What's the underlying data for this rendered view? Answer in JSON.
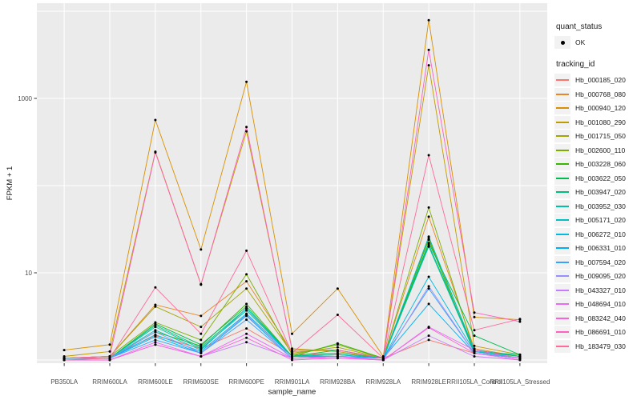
{
  "figure": {
    "background": "#FFFFFF",
    "panel_background": "#EBEBEB",
    "gridline_color": "#FFFFFF",
    "axis_tick_color": "#333333",
    "axis_text_color": "#4D4D4D",
    "title_text_color": "#1A1A1A",
    "point_color": "#000000",
    "legend_key_background": "#F2F2F2"
  },
  "legend": {
    "quant_status_title": "quant_status",
    "quant_status_items": [
      {
        "label": "OK",
        "symbol": "point"
      }
    ],
    "tracking_title": "tracking_id"
  },
  "chart_data": {
    "type": "line",
    "xlabel": "sample_name",
    "ylabel": "FPKM + 1",
    "y_scale": "log10",
    "grid": true,
    "legend_position": "right",
    "ylim": [
      0.95,
      11500
    ],
    "y_axis_ticks": [
      {
        "value": 1000,
        "label": "1000"
      },
      {
        "value": 10,
        "label": "10"
      }
    ],
    "y_gridlines": [
      1,
      10,
      100,
      1000,
      10000
    ],
    "categories": [
      "PB350LA",
      "RRIM600LA",
      "RRIM600LE",
      "RRIM600SE",
      "RRIM600PE",
      "RRIM901LA",
      "RRIM928BA",
      "RRIM928LA",
      "RRIM928LE",
      "RRII105LA_Control",
      "RRII105LA_Stressed"
    ],
    "series": [
      {
        "name": "Hb_000185_020",
        "color": "#F8766D",
        "values": [
          1.05,
          1.1,
          1.9,
          1.35,
          2.3,
          1.15,
          1.2,
          1.05,
          1.7,
          1.2,
          1.05
        ]
      },
      {
        "name": "Hb_000768_080",
        "color": "#E88526",
        "values": [
          1.05,
          1.1,
          4.3,
          3.2,
          8.0,
          1.25,
          1.3,
          1.05,
          44,
          1.35,
          1.1
        ]
      },
      {
        "name": "Hb_000940_120",
        "color": "#D89000",
        "values": [
          1.3,
          1.5,
          565,
          18.5,
          1550,
          2.0,
          6.6,
          1.1,
          7900,
          3.1,
          2.9
        ]
      },
      {
        "name": "Hb_001080_290",
        "color": "#C09B00",
        "values": [
          1.1,
          1.25,
          245,
          7.4,
          420,
          1.35,
          1.25,
          1.05,
          2400,
          1.45,
          1.15
        ]
      },
      {
        "name": "Hb_001715_050",
        "color": "#A3A500",
        "values": [
          1.05,
          1.1,
          4.1,
          2.4,
          6.6,
          1.2,
          1.4,
          1.05,
          25,
          1.3,
          1.1
        ]
      },
      {
        "name": "Hb_002600_110",
        "color": "#7CAE00",
        "values": [
          1.05,
          1.1,
          2.7,
          1.7,
          9.6,
          1.15,
          1.5,
          1.05,
          56,
          1.25,
          1.1
        ]
      },
      {
        "name": "Hb_003228_060",
        "color": "#39B600",
        "values": [
          1.05,
          1.05,
          2.1,
          1.45,
          4.4,
          1.1,
          1.55,
          1.05,
          24,
          1.2,
          1.05
        ]
      },
      {
        "name": "Hb_003622_050",
        "color": "#00BB4E",
        "values": [
          1.05,
          1.05,
          2.6,
          1.5,
          4.1,
          1.1,
          1.3,
          1.05,
          22,
          1.9,
          1.15
        ]
      },
      {
        "name": "Hb_003947_020",
        "color": "#00BF7D",
        "values": [
          1.05,
          1.05,
          2.5,
          1.4,
          3.9,
          1.1,
          1.2,
          1.05,
          21,
          1.3,
          1.1
        ]
      },
      {
        "name": "Hb_003952_030",
        "color": "#00C1A3",
        "values": [
          1.05,
          1.05,
          2.4,
          1.35,
          3.7,
          1.1,
          1.15,
          1.05,
          20,
          1.25,
          1.15
        ]
      },
      {
        "name": "Hb_005171_020",
        "color": "#00BFC4",
        "values": [
          1.05,
          1.05,
          2.2,
          1.3,
          3.9,
          1.1,
          1.15,
          1.05,
          26,
          1.3,
          1.05
        ]
      },
      {
        "name": "Hb_006272_010",
        "color": "#00BAE0",
        "values": [
          1.05,
          1.05,
          1.95,
          1.25,
          3.4,
          1.1,
          1.1,
          1.05,
          9.0,
          1.25,
          1.05
        ]
      },
      {
        "name": "Hb_006331_010",
        "color": "#00B0F6",
        "values": [
          1.05,
          1.05,
          1.85,
          1.2,
          3.2,
          1.05,
          1.1,
          1.05,
          4.4,
          1.2,
          1.05
        ]
      },
      {
        "name": "Hb_007594_020",
        "color": "#35A2FF",
        "values": [
          1.05,
          1.05,
          1.7,
          1.2,
          2.9,
          1.05,
          1.1,
          1.05,
          6.6,
          1.2,
          1.05
        ]
      },
      {
        "name": "Hb_009095_020",
        "color": "#9590FF",
        "values": [
          1.05,
          1.05,
          2.1,
          1.2,
          3.3,
          1.05,
          1.1,
          1.0,
          7.0,
          1.2,
          1.05
        ]
      },
      {
        "name": "Hb_043327_010",
        "color": "#C77CFF",
        "values": [
          1.0,
          1.0,
          1.5,
          1.1,
          1.6,
          1.05,
          1.05,
          1.0,
          1.9,
          1.1,
          1.0
        ]
      },
      {
        "name": "Hb_048694_010",
        "color": "#E76BF3",
        "values": [
          1.0,
          1.0,
          1.6,
          1.1,
          2.0,
          1.05,
          1.1,
          1.0,
          2.4,
          1.3,
          1.05
        ]
      },
      {
        "name": "Hb_083242_040",
        "color": "#FA62DB",
        "values": [
          1.0,
          1.0,
          1.5,
          1.1,
          1.8,
          1.0,
          1.05,
          1.0,
          2.35,
          1.2,
          1.0
        ]
      },
      {
        "name": "Hb_086691_010",
        "color": "#FF62BC",
        "values": [
          1.05,
          1.1,
          240,
          7.3,
          470,
          1.3,
          1.3,
          1.05,
          3600,
          3.5,
          2.75
        ]
      },
      {
        "name": "Hb_183479_030",
        "color": "#FF6A98",
        "values": [
          1.0,
          1.05,
          6.8,
          2.0,
          17.9,
          1.2,
          3.3,
          1.05,
          223,
          2.2,
          2.95
        ]
      }
    ]
  }
}
